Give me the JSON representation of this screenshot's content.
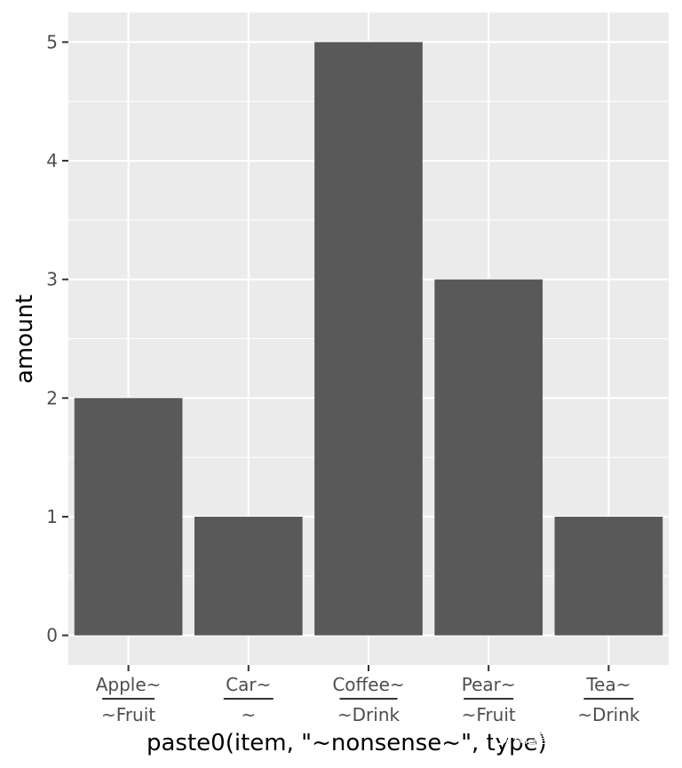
{
  "chart_data": {
    "type": "bar",
    "categories": [
      {
        "top": "Apple~",
        "bottom": "~Fruit"
      },
      {
        "top": "Car~",
        "bottom": "~"
      },
      {
        "top": "Coffee~",
        "bottom": "~Drink"
      },
      {
        "top": "Pear~",
        "bottom": "~Fruit"
      },
      {
        "top": "Tea~",
        "bottom": "~Drink"
      }
    ],
    "values": [
      2,
      1,
      5,
      3,
      1
    ],
    "xlabel": "paste0(item, \"~nonsense~\", type)",
    "ylabel": "amount",
    "ylim": [
      -0.25,
      5.25
    ],
    "yticks": [
      "0",
      "1",
      "2",
      "3",
      "4",
      "5"
    ],
    "grid": true,
    "colors": {
      "panel": "#ebebeb",
      "bar": "#595959",
      "grid": "#ffffff",
      "tick": "#333333"
    }
  },
  "watermark": {
    "text": "R语言数据分析指南"
  }
}
